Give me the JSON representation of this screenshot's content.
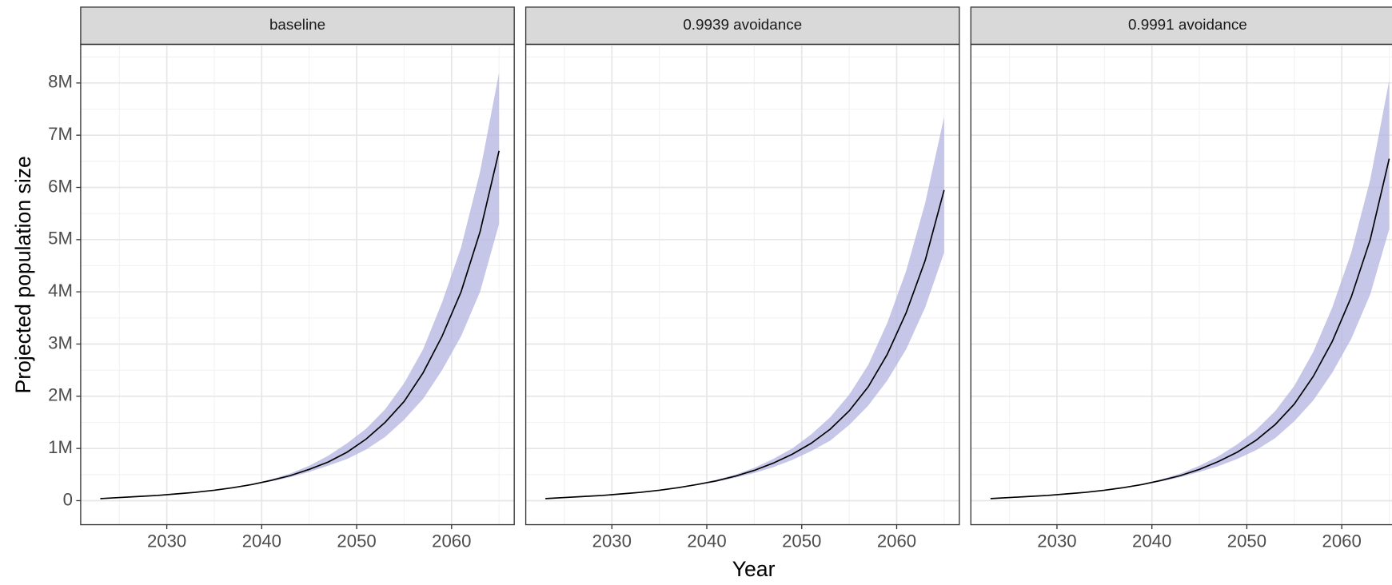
{
  "axes": {
    "xlabel": "Year",
    "ylabel": "Projected population size"
  },
  "chart_data": [
    {
      "type": "line",
      "title": "baseline",
      "x": [
        2023,
        2025,
        2027,
        2029,
        2031,
        2033,
        2035,
        2037,
        2039,
        2041,
        2043,
        2045,
        2047,
        2049,
        2051,
        2053,
        2055,
        2057,
        2059,
        2061,
        2063,
        2065
      ],
      "series": [
        {
          "color": "#000000",
          "values": [
            40000,
            60000,
            80000,
            100000,
            130000,
            160000,
            200000,
            250000,
            310000,
            390000,
            480000,
            600000,
            740000,
            930000,
            1180000,
            1500000,
            1900000,
            2450000,
            3150000,
            4000000,
            5150000,
            6700000
          ]
        }
      ],
      "band": {
        "color": "#b3b3e0",
        "upper": [
          40000,
          60000,
          80000,
          100000,
          130000,
          160000,
          200000,
          250000,
          320000,
          410000,
          520000,
          670000,
          860000,
          1100000,
          1380000,
          1750000,
          2250000,
          2900000,
          3800000,
          4850000,
          6300000,
          8200000
        ],
        "lower": [
          40000,
          60000,
          80000,
          100000,
          130000,
          160000,
          200000,
          250000,
          300000,
          370000,
          450000,
          550000,
          670000,
          800000,
          980000,
          1220000,
          1550000,
          1950000,
          2500000,
          3150000,
          4000000,
          5300000
        ]
      },
      "xlim": [
        2020.93,
        2066.6
      ],
      "xticks": [
        2030,
        2040,
        2050,
        2060
      ],
      "xminor": [
        2025,
        2035,
        2045,
        2055,
        2065
      ],
      "ylim": [
        -460000,
        8740000
      ],
      "yticks": [
        0,
        {
          "value": 1000000,
          "label": "1M"
        },
        {
          "value": 2000000,
          "label": "2M"
        },
        {
          "value": 3000000,
          "label": "3M"
        },
        {
          "value": 4000000,
          "label": "4M"
        },
        {
          "value": 5000000,
          "label": "5M"
        },
        {
          "value": 6000000,
          "label": "6M"
        },
        {
          "value": 7000000,
          "label": "7M"
        },
        {
          "value": 8000000,
          "label": "8M"
        }
      ],
      "yminor": [
        500000,
        1500000,
        2500000,
        3500000,
        4500000,
        5500000,
        6500000,
        7500000,
        8500000
      ],
      "grid": true
    },
    {
      "type": "line",
      "title": "0.9939 avoidance",
      "x": [
        2023,
        2025,
        2027,
        2029,
        2031,
        2033,
        2035,
        2037,
        2039,
        2041,
        2043,
        2045,
        2047,
        2049,
        2051,
        2053,
        2055,
        2057,
        2059,
        2061,
        2063,
        2065
      ],
      "series": [
        {
          "color": "#000000",
          "values": [
            40000,
            60000,
            80000,
            100000,
            130000,
            160000,
            200000,
            250000,
            310000,
            380000,
            470000,
            580000,
            720000,
            890000,
            1100000,
            1370000,
            1720000,
            2180000,
            2800000,
            3600000,
            4600000,
            5950000
          ]
        }
      ],
      "band": {
        "color": "#b3b3e0",
        "upper": [
          40000,
          60000,
          80000,
          100000,
          130000,
          160000,
          200000,
          250000,
          320000,
          400000,
          500000,
          630000,
          800000,
          1000000,
          1270000,
          1600000,
          2030000,
          2600000,
          3400000,
          4400000,
          5700000,
          7350000
        ],
        "lower": [
          40000,
          60000,
          80000,
          100000,
          130000,
          160000,
          200000,
          250000,
          300000,
          360000,
          440000,
          530000,
          640000,
          780000,
          950000,
          1150000,
          1450000,
          1820000,
          2300000,
          2900000,
          3700000,
          4750000
        ]
      },
      "xlim": [
        2020.93,
        2066.6
      ],
      "xticks": [
        2030,
        2040,
        2050,
        2060
      ],
      "xminor": [
        2025,
        2035,
        2045,
        2055,
        2065
      ],
      "ylim": [
        -460000,
        8740000
      ],
      "yticks": [
        0,
        1000000,
        2000000,
        3000000,
        4000000,
        5000000,
        6000000,
        7000000,
        8000000
      ],
      "yminor": [
        500000,
        1500000,
        2500000,
        3500000,
        4500000,
        5500000,
        6500000,
        7500000,
        8500000
      ],
      "grid": true
    },
    {
      "type": "line",
      "title": "0.9991 avoidance",
      "x": [
        2023,
        2025,
        2027,
        2029,
        2031,
        2033,
        2035,
        2037,
        2039,
        2041,
        2043,
        2045,
        2047,
        2049,
        2051,
        2053,
        2055,
        2057,
        2059,
        2061,
        2063,
        2065
      ],
      "series": [
        {
          "color": "#000000",
          "values": [
            40000,
            60000,
            80000,
            100000,
            130000,
            160000,
            200000,
            250000,
            310000,
            390000,
            480000,
            600000,
            750000,
            930000,
            1160000,
            1460000,
            1850000,
            2380000,
            3050000,
            3900000,
            5000000,
            6550000
          ]
        }
      ],
      "band": {
        "color": "#b3b3e0",
        "upper": [
          40000,
          60000,
          80000,
          100000,
          130000,
          160000,
          200000,
          250000,
          320000,
          410000,
          520000,
          670000,
          850000,
          1080000,
          1360000,
          1720000,
          2200000,
          2850000,
          3700000,
          4750000,
          6150000,
          8050000
        ],
        "lower": [
          40000,
          60000,
          80000,
          100000,
          130000,
          160000,
          200000,
          250000,
          300000,
          370000,
          450000,
          550000,
          660000,
          800000,
          970000,
          1200000,
          1520000,
          1920000,
          2450000,
          3100000,
          3950000,
          5200000
        ]
      },
      "xlim": [
        2020.93,
        2066.6
      ],
      "xticks": [
        2030,
        2040,
        2050,
        2060
      ],
      "xminor": [
        2025,
        2035,
        2045,
        2055,
        2065
      ],
      "ylim": [
        -460000,
        8740000
      ],
      "yticks": [
        0,
        1000000,
        2000000,
        3000000,
        4000000,
        5000000,
        6000000,
        7000000,
        8000000
      ],
      "yminor": [
        500000,
        1500000,
        2500000,
        3500000,
        4500000,
        5500000,
        6500000,
        7500000,
        8500000
      ],
      "grid": true
    }
  ]
}
